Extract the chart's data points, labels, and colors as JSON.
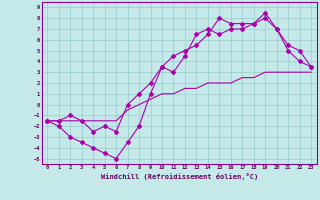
{
  "xlabel": "Windchill (Refroidissement éolien,°C)",
  "xlim": [
    -0.5,
    23.5
  ],
  "ylim": [
    -5.5,
    9.5
  ],
  "xticks": [
    0,
    1,
    2,
    3,
    4,
    5,
    6,
    7,
    8,
    9,
    10,
    11,
    12,
    13,
    14,
    15,
    16,
    17,
    18,
    19,
    20,
    21,
    22,
    23
  ],
  "yticks": [
    -5,
    -4,
    -3,
    -2,
    -1,
    0,
    1,
    2,
    3,
    4,
    5,
    6,
    7,
    8,
    9
  ],
  "bg_color": "#c5e8e8",
  "line_color": "#aa00aa",
  "grid_color": "#99cccc",
  "curve1_x": [
    0,
    1,
    2,
    3,
    4,
    5,
    6,
    7,
    8,
    9,
    10,
    11,
    12,
    13,
    14,
    15,
    16,
    17,
    18,
    19,
    20,
    21,
    22,
    23
  ],
  "curve1_y": [
    -1.5,
    -1.5,
    -1.5,
    -1.5,
    -1.5,
    -1.5,
    -1.5,
    -0.5,
    0,
    0.5,
    1,
    1,
    1.5,
    1.5,
    2,
    2,
    2,
    2.5,
    2.5,
    3,
    3,
    3,
    3,
    3
  ],
  "curve2_x": [
    0,
    1,
    2,
    3,
    4,
    5,
    6,
    7,
    8,
    9,
    10,
    11,
    12,
    13,
    14,
    15,
    16,
    17,
    18,
    19,
    20,
    21,
    22,
    23
  ],
  "curve2_y": [
    -1.5,
    -2,
    -3,
    -3.5,
    -4,
    -4.5,
    -5,
    -3.5,
    -2,
    1,
    3.5,
    3,
    4.5,
    6.5,
    7,
    6.5,
    7,
    7,
    7.5,
    8,
    7,
    5.5,
    5,
    3.5
  ],
  "curve3_x": [
    0,
    1,
    2,
    3,
    4,
    5,
    6,
    7,
    8,
    9,
    10,
    11,
    12,
    13,
    14,
    15,
    16,
    17,
    18,
    19,
    20,
    21,
    22,
    23
  ],
  "curve3_y": [
    -1.5,
    -1.5,
    -1,
    -1.5,
    -2.5,
    -2,
    -2.5,
    0,
    1,
    2,
    3.5,
    4.5,
    5,
    5.5,
    6.5,
    8,
    7.5,
    7.5,
    7.5,
    8.5,
    7,
    5,
    4,
    3.5
  ]
}
